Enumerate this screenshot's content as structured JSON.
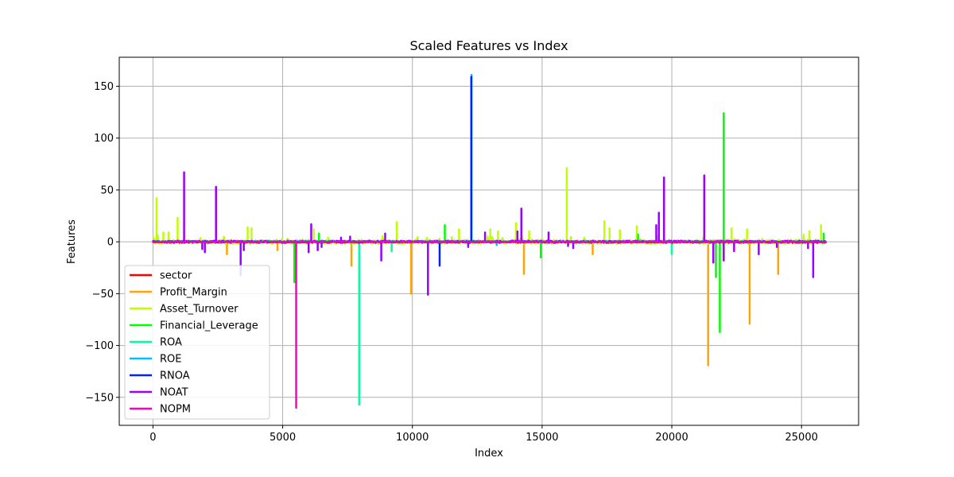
{
  "chart_data": {
    "type": "line",
    "title": "Scaled Features vs Index",
    "xlabel": "Index",
    "ylabel": "Features",
    "xlim": [
      -1300,
      27200
    ],
    "ylim": [
      -177,
      178
    ],
    "x_ticks": [
      0,
      5000,
      10000,
      15000,
      20000,
      25000
    ],
    "y_ticks": [
      -150,
      -100,
      -50,
      0,
      50,
      100,
      150
    ],
    "grid": true,
    "legend_position": "lower-left",
    "x_range": [
      0,
      25950
    ],
    "series": [
      {
        "name": "sector",
        "color": "#ff0000",
        "spikes": []
      },
      {
        "name": "Profit_Margin",
        "color": "#ffa500",
        "spikes": [
          [
            2850,
            -12
          ],
          [
            4800,
            -8
          ],
          [
            7650,
            -23
          ],
          [
            9950,
            -50
          ],
          [
            14300,
            -31
          ],
          [
            16950,
            -12
          ],
          [
            21400,
            -119
          ],
          [
            23000,
            -79
          ],
          [
            24100,
            -31
          ]
        ]
      },
      {
        "name": "Asset_Turnover",
        "color": "#bfff00",
        "spikes": [
          [
            140,
            42
          ],
          [
            400,
            9
          ],
          [
            600,
            9
          ],
          [
            950,
            23
          ],
          [
            3650,
            14
          ],
          [
            3800,
            13
          ],
          [
            6200,
            12
          ],
          [
            9400,
            19
          ],
          [
            11800,
            12
          ],
          [
            13000,
            12
          ],
          [
            13300,
            10
          ],
          [
            14000,
            18
          ],
          [
            14500,
            10
          ],
          [
            15950,
            71
          ],
          [
            17400,
            20
          ],
          [
            17600,
            13
          ],
          [
            18000,
            11
          ],
          [
            18650,
            15
          ],
          [
            21250,
            22
          ],
          [
            22300,
            13
          ],
          [
            22900,
            12
          ],
          [
            25300,
            10
          ],
          [
            25750,
            16
          ]
        ]
      },
      {
        "name": "Financial_Leverage",
        "color": "#00ff00",
        "spikes": [
          [
            5450,
            -39
          ],
          [
            6400,
            8
          ],
          [
            11250,
            16
          ],
          [
            14950,
            -15
          ],
          [
            18700,
            7
          ],
          [
            21700,
            -34
          ],
          [
            21850,
            -87
          ],
          [
            22000,
            124
          ],
          [
            25850,
            8
          ]
        ]
      },
      {
        "name": "ROA",
        "color": "#00ff9f",
        "spikes": [
          [
            7950,
            -157
          ],
          [
            9200,
            -9
          ],
          [
            20000,
            -12
          ]
        ]
      },
      {
        "name": "ROE",
        "color": "#00bfff",
        "spikes": [
          [
            12280,
            161
          ],
          [
            13250,
            -3
          ]
        ]
      },
      {
        "name": "RNOA",
        "color": "#0022ff",
        "spikes": [
          [
            11050,
            -23
          ],
          [
            12270,
            159
          ]
        ]
      },
      {
        "name": "NOAT",
        "color": "#9a00ff",
        "spikes": [
          [
            1200,
            67
          ],
          [
            1900,
            -7
          ],
          [
            2000,
            -10
          ],
          [
            2430,
            53
          ],
          [
            3380,
            -32
          ],
          [
            3500,
            -8
          ],
          [
            6000,
            -10
          ],
          [
            6100,
            17
          ],
          [
            6350,
            -8
          ],
          [
            6500,
            -5
          ],
          [
            7250,
            4
          ],
          [
            7600,
            5
          ],
          [
            8800,
            -18
          ],
          [
            8950,
            8
          ],
          [
            10600,
            -51
          ],
          [
            12150,
            -5
          ],
          [
            12800,
            9
          ],
          [
            14200,
            32
          ],
          [
            14050,
            10
          ],
          [
            15250,
            9
          ],
          [
            16000,
            -4
          ],
          [
            16200,
            -6
          ],
          [
            19400,
            16
          ],
          [
            19500,
            28
          ],
          [
            19700,
            62
          ],
          [
            21250,
            64
          ],
          [
            21600,
            -20
          ],
          [
            22000,
            -18
          ],
          [
            22400,
            -9
          ],
          [
            23350,
            -12
          ],
          [
            24050,
            -5
          ],
          [
            25250,
            -6
          ],
          [
            25450,
            -34
          ]
        ]
      },
      {
        "name": "NOPM",
        "color": "#ff00bf",
        "spikes": [
          [
            5520,
            -160
          ]
        ]
      }
    ]
  }
}
